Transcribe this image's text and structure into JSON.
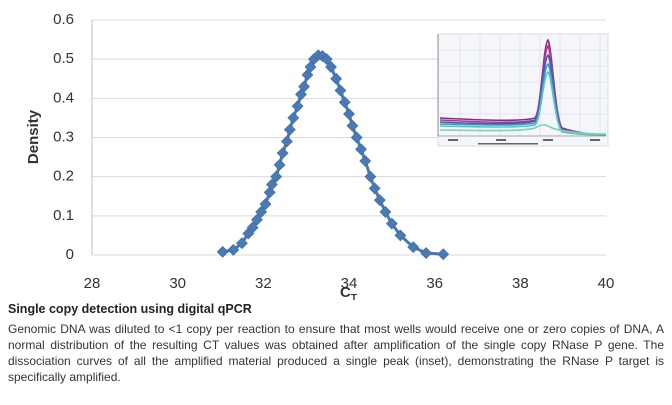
{
  "chart_data": {
    "type": "scatter",
    "title": "",
    "xlabel": "C",
    "xlabel_subscript": "T",
    "ylabel": "Density",
    "xlim": [
      28,
      40
    ],
    "ylim": [
      0,
      0.6
    ],
    "x_ticks": [
      "28",
      "30",
      "32",
      "34",
      "36",
      "38",
      "40"
    ],
    "y_ticks": [
      "0",
      "0.1",
      "0.2",
      "0.3",
      "0.4",
      "0.5",
      "0.6"
    ],
    "grid": "horizontal",
    "marker": "diamond",
    "color": "#4a7ab3",
    "series": [
      {
        "values": [
          [
            31.05,
            0.008
          ],
          [
            31.3,
            0.013
          ],
          [
            31.5,
            0.03
          ],
          [
            31.65,
            0.055
          ],
          [
            31.75,
            0.07
          ],
          [
            31.85,
            0.09
          ],
          [
            31.95,
            0.11
          ],
          [
            32.05,
            0.13
          ],
          [
            32.15,
            0.16
          ],
          [
            32.2,
            0.18
          ],
          [
            32.3,
            0.2
          ],
          [
            32.38,
            0.23
          ],
          [
            32.45,
            0.26
          ],
          [
            32.55,
            0.29
          ],
          [
            32.62,
            0.32
          ],
          [
            32.7,
            0.35
          ],
          [
            32.8,
            0.38
          ],
          [
            32.88,
            0.41
          ],
          [
            32.95,
            0.43
          ],
          [
            33.03,
            0.46
          ],
          [
            33.1,
            0.48
          ],
          [
            33.18,
            0.5
          ],
          [
            33.28,
            0.51
          ],
          [
            33.38,
            0.508
          ],
          [
            33.48,
            0.5
          ],
          [
            33.58,
            0.48
          ],
          [
            33.7,
            0.45
          ],
          [
            33.8,
            0.42
          ],
          [
            33.9,
            0.39
          ],
          [
            34.0,
            0.36
          ],
          [
            34.08,
            0.33
          ],
          [
            34.18,
            0.3
          ],
          [
            34.28,
            0.27
          ],
          [
            34.38,
            0.24
          ],
          [
            34.5,
            0.2
          ],
          [
            34.6,
            0.17
          ],
          [
            34.72,
            0.14
          ],
          [
            34.85,
            0.11
          ],
          [
            35.0,
            0.08
          ],
          [
            35.2,
            0.05
          ],
          [
            35.5,
            0.02
          ],
          [
            35.8,
            0.005
          ],
          [
            36.2,
            0.002
          ]
        ]
      }
    ]
  },
  "caption": {
    "title": "Single copy detection using digital qPCR",
    "body": "Genomic DNA was diluted to <1 copy per reaction to ensure that most wells would receive one or zero copies of DNA, A normal distribution of the resulting CT values was obtained after amplification of the single copy RNase P gene. The dissociation curves of all the amplified material produced a single peak (inset), demonstrating the RNase P target is specifically amplified."
  }
}
